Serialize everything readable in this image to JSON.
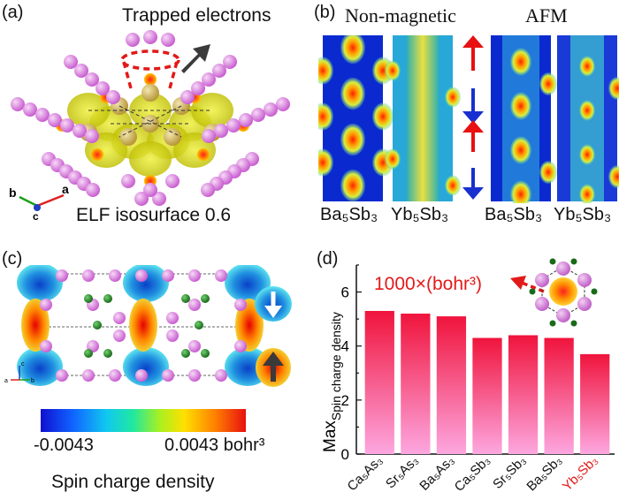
{
  "panel_a": {
    "label": "(a)",
    "title": "Trapped electrons",
    "caption": "ELF isosurface 0.6",
    "axes": [
      "a",
      "b",
      "c"
    ]
  },
  "panel_b": {
    "label": "(b)",
    "heading_left": "Non-magnetic",
    "heading_right": "AFM",
    "compound_labels": [
      "Ba₅Sb₃",
      "Yb₅Sb₃",
      "Ba₅Sb₃",
      "Yb₅Sb₃"
    ]
  },
  "panel_c": {
    "label": "(c)",
    "axes": [
      "a",
      "b",
      "c"
    ],
    "colorbar_min": "-0.0043",
    "colorbar_max": "0.0043 bohr³",
    "caption": "Spin charge density",
    "colors": {
      "spin_down": "#1f8fe0",
      "spin_up": "#e01a1a"
    }
  },
  "panel_d": {
    "label": "(d)",
    "annotation": "1000×(bohr³)",
    "chart_data": {
      "type": "bar",
      "categories": [
        "Ca₅As₃",
        "Sr₅As₃",
        "Ba₅As₃",
        "Ca₅Sb₃",
        "Sr₅Sb₃",
        "Ba₅Sb₃",
        "Yb₅Sb₃"
      ],
      "values": [
        5.3,
        5.2,
        5.1,
        4.3,
        4.4,
        4.3,
        3.7
      ],
      "ylabel_main": "Max",
      "ylabel_sub": "Spin charge density",
      "ylim": [
        0,
        7
      ],
      "yticks": [
        "0",
        "2",
        "4",
        "6"
      ],
      "highlight_category": "Yb₅Sb₃",
      "colors": {
        "bar_top": "#f0143c",
        "bar_bottom": "#fda7e0",
        "highlight_label": "#e31a1a"
      }
    }
  }
}
